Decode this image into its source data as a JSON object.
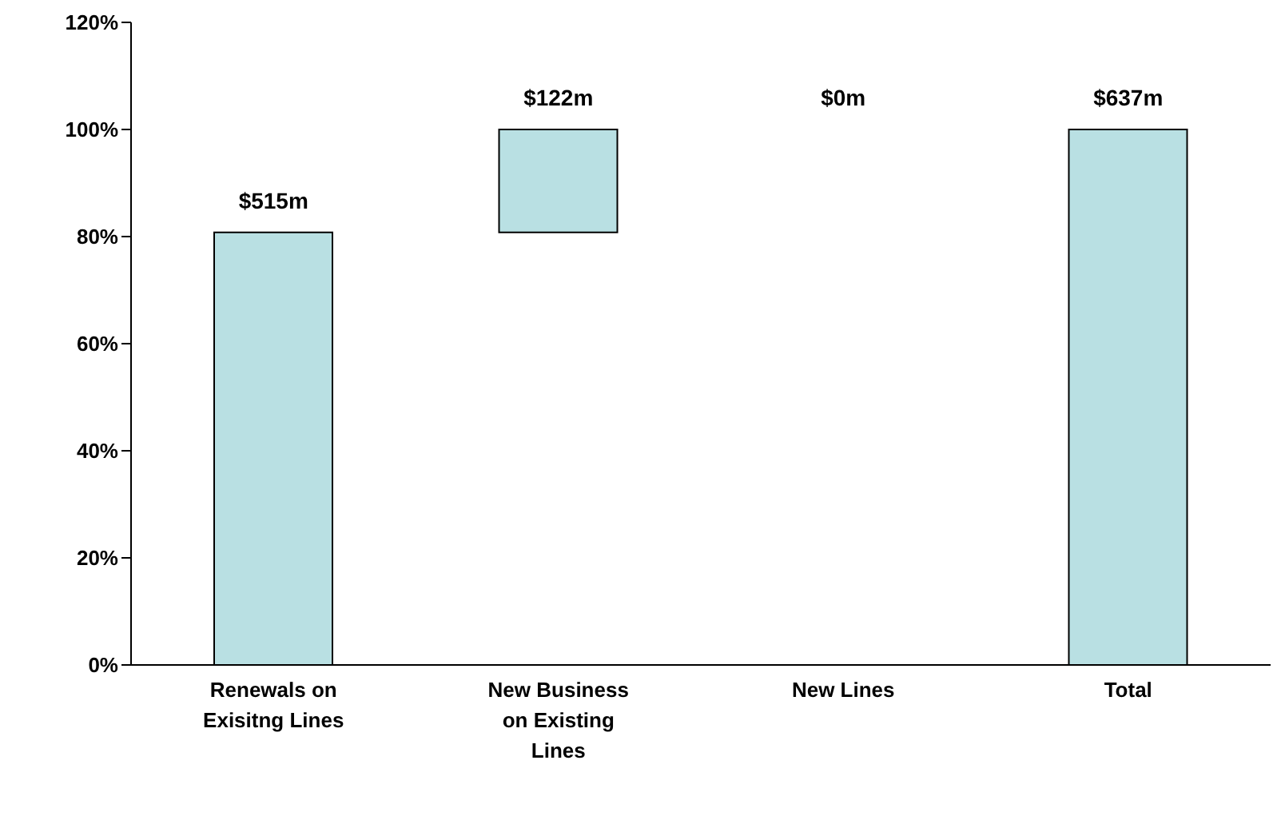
{
  "chart_data": {
    "type": "bar",
    "categories": [
      "Renewals on Exisitng Lines",
      "New Business on Existing Lines",
      "New Lines",
      "Total"
    ],
    "values": [
      80.8,
      19.2,
      null,
      100
    ],
    "base": [
      0,
      80.8,
      null,
      0
    ],
    "annotations": [
      {
        "text": "$515m",
        "x": "Renewals on Exisitng Lines",
        "y": 80.8
      },
      {
        "text": "$122m",
        "x": "New Business on Existing Lines",
        "y": 100
      },
      "$0m",
      {
        "text": "$637m",
        "x": "Total",
        "y": 100
      }
    ],
    "color": "#b9e0e3",
    "ylim": [
      0,
      120
    ],
    "yticks": [
      {
        "value": 0,
        "label": "0%"
      },
      {
        "value": 20,
        "label": "20%"
      },
      {
        "value": 40,
        "label": "40%"
      },
      {
        "value": 60,
        "label": "60%"
      },
      {
        "value": 80,
        "label": "80%"
      },
      {
        "value": 100,
        "label": "100%"
      },
      {
        "value": 120,
        "label": "120%"
      }
    ],
    "grid": false,
    "legend": false
  }
}
